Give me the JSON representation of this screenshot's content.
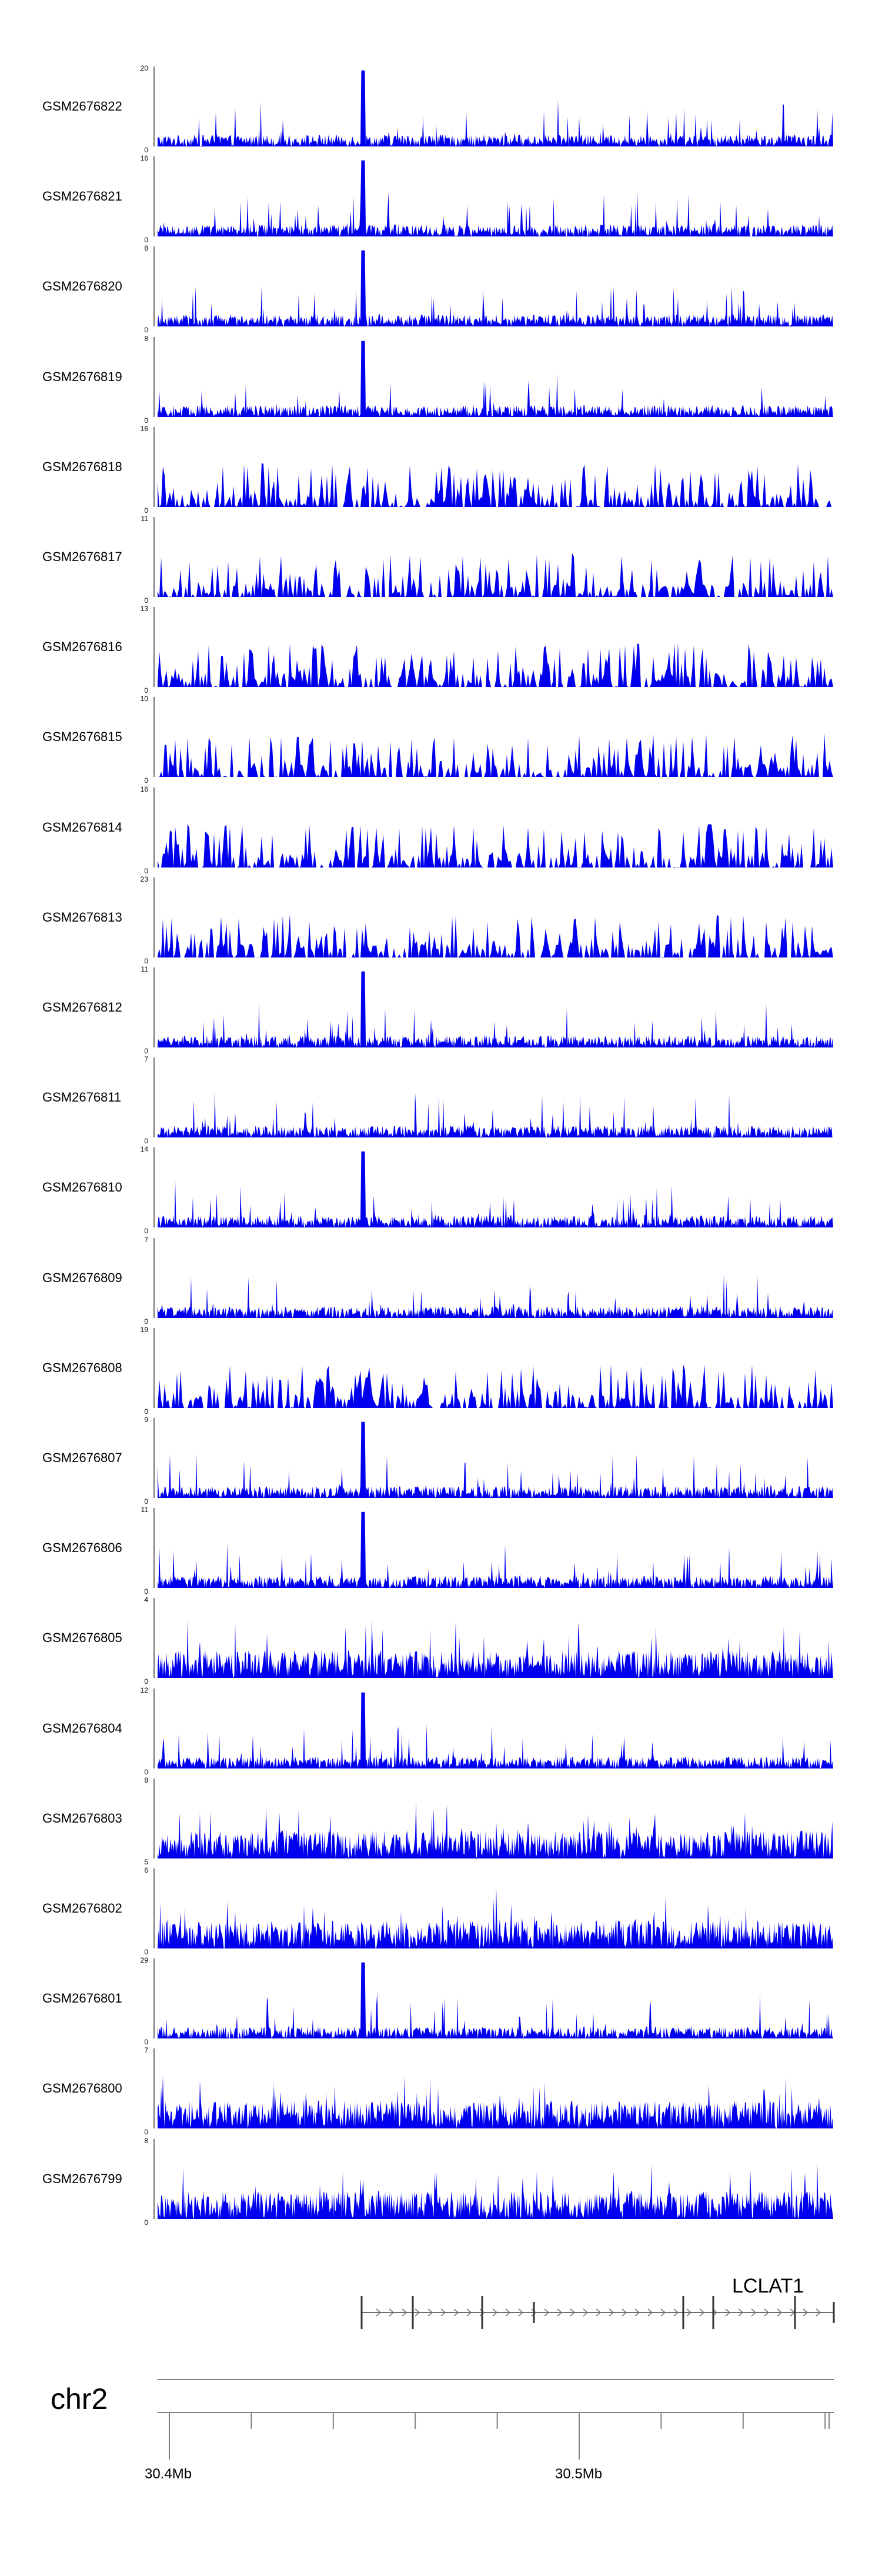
{
  "colors": {
    "signal": "#0000ee",
    "axis": "#808080",
    "gene": "#707070"
  },
  "tracks": [
    {
      "sample": "GSM2676822",
      "max": "20",
      "min": "0"
    },
    {
      "sample": "GSM2676821",
      "max": "16",
      "min": "0"
    },
    {
      "sample": "GSM2676820",
      "max": "8",
      "min": "0"
    },
    {
      "sample": "GSM2676819",
      "max": "8",
      "min": "0"
    },
    {
      "sample": "GSM2676818",
      "max": "16",
      "min": "0"
    },
    {
      "sample": "GSM2676817",
      "max": "11",
      "min": "0"
    },
    {
      "sample": "GSM2676816",
      "max": "13",
      "min": "0"
    },
    {
      "sample": "GSM2676815",
      "max": "10",
      "min": "0"
    },
    {
      "sample": "GSM2676814",
      "max": "16",
      "min": "0"
    },
    {
      "sample": "GSM2676813",
      "max": "23",
      "min": "0"
    },
    {
      "sample": "GSM2676812",
      "max": "11",
      "min": "0"
    },
    {
      "sample": "GSM2676811",
      "max": "7",
      "min": "0"
    },
    {
      "sample": "GSM2676810",
      "max": "14",
      "min": "0"
    },
    {
      "sample": "GSM2676809",
      "max": "7",
      "min": "0"
    },
    {
      "sample": "GSM2676808",
      "max": "19",
      "min": "0"
    },
    {
      "sample": "GSM2676807",
      "max": "9",
      "min": "0"
    },
    {
      "sample": "GSM2676806",
      "max": "11",
      "min": "0"
    },
    {
      "sample": "GSM2676805",
      "max": "4",
      "min": "0"
    },
    {
      "sample": "GSM2676804",
      "max": "12",
      "min": "0"
    },
    {
      "sample": "GSM2676803",
      "max": "8",
      "min": "5"
    },
    {
      "sample": "GSM2676802",
      "max": "6",
      "min": "0"
    },
    {
      "sample": "GSM2676801",
      "max": "29",
      "min": "0"
    },
    {
      "sample": "GSM2676800",
      "max": "7",
      "min": "0"
    },
    {
      "sample": "GSM2676799",
      "max": "8",
      "min": "0"
    }
  ],
  "gene": {
    "name": "LCLAT1",
    "strand": "+"
  },
  "chromosome": {
    "name": "chr2",
    "ticks": [
      "30.4Mb",
      "30.5Mb"
    ]
  }
}
